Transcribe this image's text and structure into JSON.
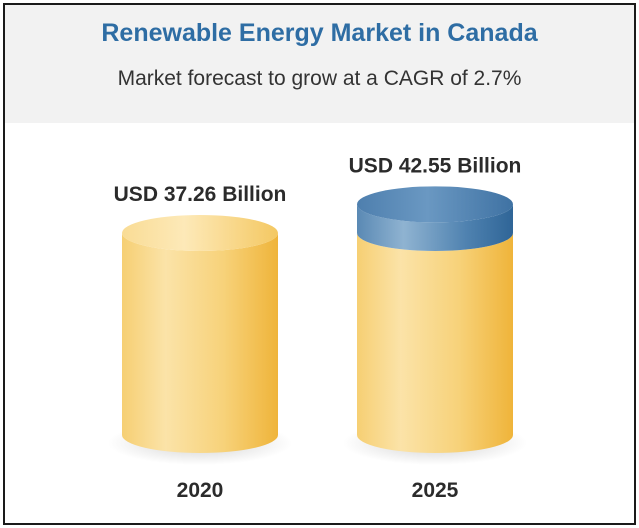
{
  "header": {
    "title": "Renewable Energy Market in Canada",
    "subtitle": "Market forecast to grow at a CAGR of 2.7%"
  },
  "colors": {
    "title": "#2e6da4",
    "cylinder_light": "#fbe3a4",
    "cylinder_mid": "#f7cf6c",
    "cylinder_dark": "#efb53c",
    "growth_light": "#8fb3d1",
    "growth_dark": "#3a73a6"
  },
  "chart_data": {
    "type": "bar",
    "categories": [
      "2020",
      "2025"
    ],
    "values": [
      37.26,
      42.55
    ],
    "value_labels": [
      "USD 37.26 Billion",
      "USD 42.55 Billion"
    ],
    "unit": "USD Billion",
    "growth_highlight": true,
    "title": "Renewable Energy Market in Canada",
    "subtitle": "Market forecast to grow at a CAGR of 2.7%"
  }
}
